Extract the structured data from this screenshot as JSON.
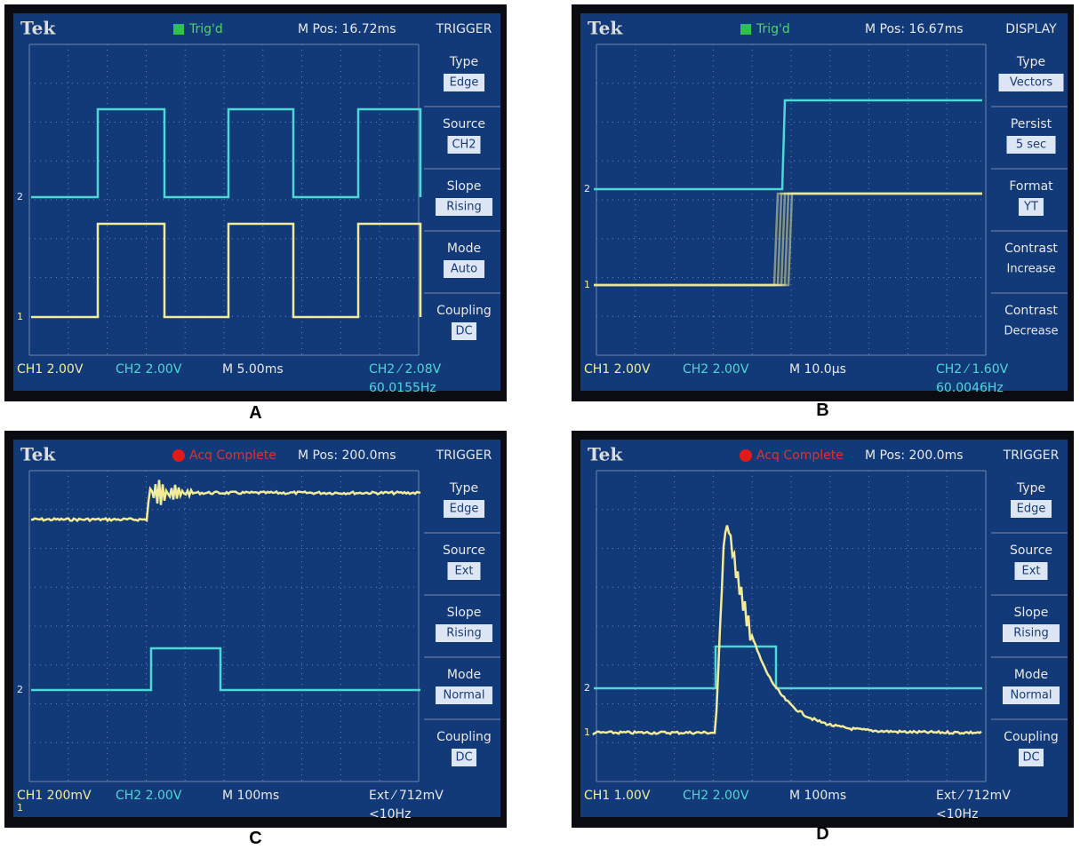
{
  "panels": [
    {
      "brand": "Tek",
      "status": "Trig'd",
      "mpos": "M Pos: 16.72ms",
      "menu_title": "TRIGGER",
      "menu": [
        {
          "label": "Type",
          "value": "Edge"
        },
        {
          "label": "Source",
          "value": "CH2"
        },
        {
          "label": "Slope",
          "value": "Rising"
        },
        {
          "label": "Mode",
          "value": "Auto"
        },
        {
          "label": "Coupling",
          "value": "DC"
        }
      ],
      "ch1_marker": "1",
      "ch2_marker": "2",
      "footer": {
        "ch1": "CH1 2.00V",
        "ch2": "CH2 2.00V",
        "timebase": "M 5.00ms",
        "trigger": "CH2 ⁄ 2.08V",
        "freq": "60.0155Hz"
      },
      "caption": "A"
    },
    {
      "brand": "Tek",
      "status": "Trig'd",
      "mpos": "M Pos: 16.67ms",
      "menu_title": "DISPLAY",
      "menu": [
        {
          "label": "Type",
          "value": "Vectors"
        },
        {
          "label": "Persist",
          "value": "5 sec"
        },
        {
          "label": "Format",
          "value": "YT"
        },
        {
          "label": "Contrast",
          "value": "Increase",
          "boxed": false
        },
        {
          "label": "Contrast",
          "value": "Decrease",
          "boxed": false
        }
      ],
      "ch1_marker": "1",
      "ch2_marker": "2",
      "footer": {
        "ch1": "CH1 2.00V",
        "ch2": "CH2 2.00V",
        "timebase": "M 10.0µs",
        "trigger": "CH2 ⁄ 1.60V",
        "freq": "60.0046Hz"
      },
      "caption": "B"
    },
    {
      "brand": "Tek",
      "status": "Acq Complete",
      "mpos": "M Pos: 200.0ms",
      "menu_title": "TRIGGER",
      "menu": [
        {
          "label": "Type",
          "value": "Edge"
        },
        {
          "label": "Source",
          "value": "Ext"
        },
        {
          "label": "Slope",
          "value": "Rising"
        },
        {
          "label": "Mode",
          "value": "Normal"
        },
        {
          "label": "Coupling",
          "value": "DC"
        }
      ],
      "ch1_marker": "1",
      "ch2_marker": "2",
      "footer": {
        "ch1": "CH1 200mV",
        "ch2": "CH2 2.00V",
        "timebase": "M 100ms",
        "trigger": "Ext ⁄ 712mV",
        "freq": "<10Hz"
      },
      "caption": "C"
    },
    {
      "brand": "Tek",
      "status": "Acq Complete",
      "mpos": "M Pos: 200.0ms",
      "menu_title": "TRIGGER",
      "menu": [
        {
          "label": "Type",
          "value": "Edge"
        },
        {
          "label": "Source",
          "value": "Ext"
        },
        {
          "label": "Slope",
          "value": "Rising"
        },
        {
          "label": "Mode",
          "value": "Normal"
        },
        {
          "label": "Coupling",
          "value": "DC"
        }
      ],
      "ch1_marker": "1",
      "ch2_marker": "2",
      "footer": {
        "ch1": "CH1 1.00V",
        "ch2": "CH2 2.00V",
        "timebase": "M 100ms",
        "trigger": "Ext ⁄ 712mV",
        "freq": "<10Hz"
      },
      "caption": "D"
    }
  ]
}
